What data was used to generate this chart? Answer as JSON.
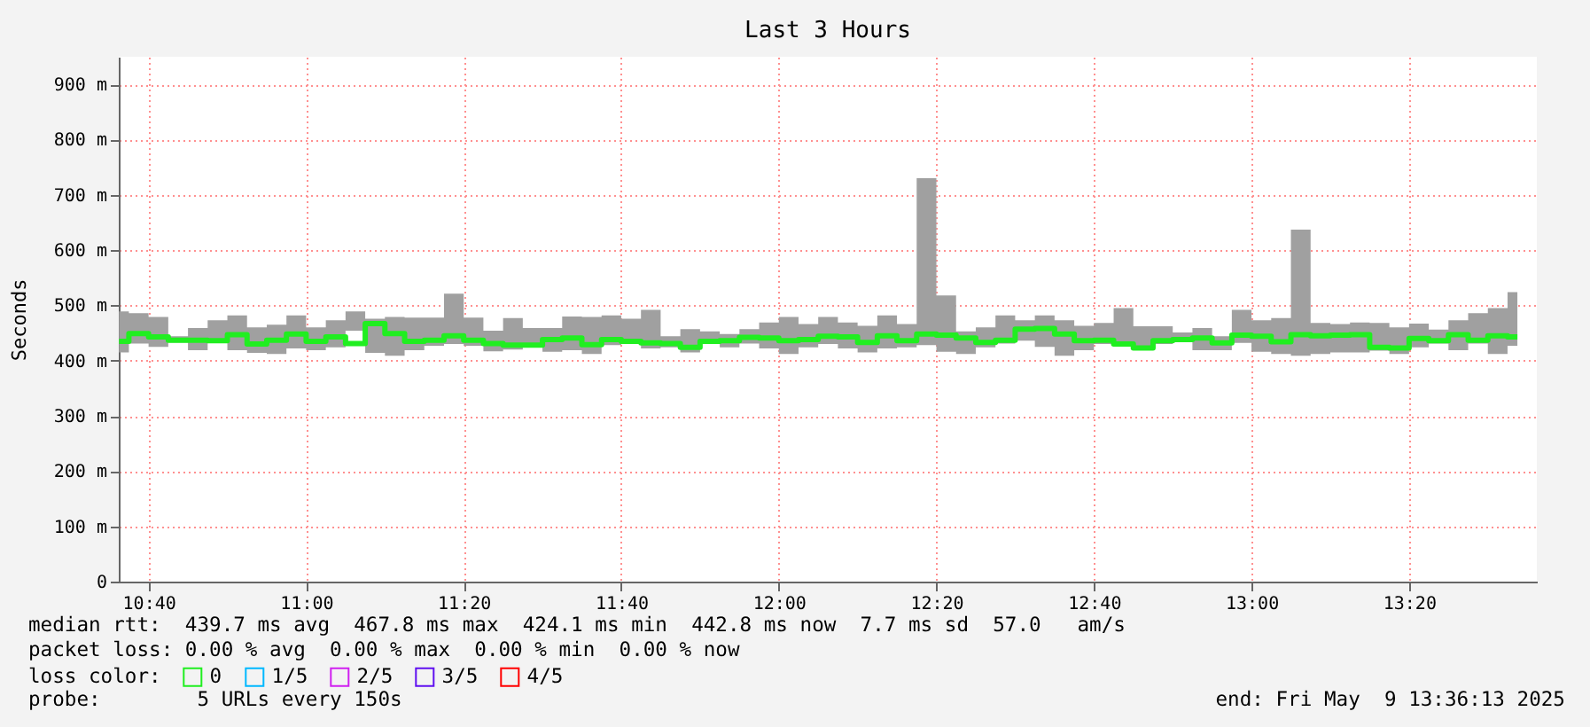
{
  "chart_data": {
    "type": "step",
    "title": "Last 3 Hours",
    "ylabel": "Seconds",
    "legend_title": "loss color:",
    "legend": "bottom left",
    "grid": true,
    "line_style": "solid",
    "marker": "none",
    "x": [
      10.6042,
      10.6458,
      10.6875,
      10.7292,
      10.7708,
      10.8125,
      10.8542,
      10.8958,
      10.9375,
      10.9792,
      11.0208,
      11.0625,
      11.1042,
      11.1458,
      11.1875,
      11.2292,
      11.2708,
      11.3125,
      11.3542,
      11.3958,
      11.4375,
      11.4792,
      11.5208,
      11.5625,
      11.6042,
      11.6458,
      11.6875,
      11.7292,
      11.7708,
      11.8125,
      11.8542,
      11.8958,
      11.9375,
      11.9792,
      12.0208,
      12.0625,
      12.1042,
      12.1458,
      12.1875,
      12.2292,
      12.2708,
      12.3125,
      12.3542,
      12.3958,
      12.4375,
      12.4792,
      12.5208,
      12.5625,
      12.6042,
      12.6458,
      12.6875,
      12.7292,
      12.7708,
      12.8125,
      12.8542,
      12.8958,
      12.9375,
      12.9792,
      13.0208,
      13.0625,
      13.1042,
      13.1458,
      13.1875,
      13.2292,
      13.2708,
      13.3125,
      13.3542,
      13.3958,
      13.4375,
      13.4792,
      13.5208,
      13.5625
    ],
    "xlim": [
      10.6036,
      13.6036
    ],
    "xticks": [
      {
        "value": 10.6667,
        "label": "10:40"
      },
      {
        "value": 11,
        "label": "11:00"
      },
      {
        "value": 11.3333,
        "label": "11:20"
      },
      {
        "value": 11.6667,
        "label": "11:40"
      },
      {
        "value": 12,
        "label": "12:00"
      },
      {
        "value": 12.3333,
        "label": "12:20"
      },
      {
        "value": 12.6667,
        "label": "12:40"
      },
      {
        "value": 13,
        "label": "13:00"
      },
      {
        "value": 13.3333,
        "label": "13:20"
      }
    ],
    "ylim": [
      0,
      950
    ],
    "yticks": [
      0,
      {
        "value": 100,
        "label": "100 m"
      },
      {
        "value": 200,
        "label": "200 m"
      },
      {
        "value": 300,
        "label": "300 m"
      },
      {
        "value": 400,
        "label": "400 m"
      },
      {
        "value": 500,
        "label": "500 m"
      },
      {
        "value": 600,
        "label": "600 m"
      },
      {
        "value": 700,
        "label": "700 m"
      },
      {
        "value": 800,
        "label": "800 m"
      },
      {
        "value": 900,
        "label": "900 m"
      }
    ],
    "series": [
      {
        "name": "0",
        "color": "#20ee20",
        "values": [
          435,
          449,
          443,
          437,
          437,
          436,
          447,
          430,
          437,
          448,
          435,
          443,
          431,
          467,
          449,
          435,
          437,
          445,
          437,
          431,
          428,
          428,
          438,
          441,
          429,
          438,
          435,
          432,
          431,
          424,
          435,
          436,
          442,
          441,
          436,
          438,
          444,
          443,
          433,
          445,
          436,
          448,
          446,
          441,
          433,
          437,
          457,
          458,
          448,
          436,
          437,
          430,
          423,
          436,
          438,
          441,
          432,
          446,
          444,
          434,
          447,
          445,
          446,
          447,
          424,
          423,
          440,
          436,
          447,
          437,
          445,
          443
        ],
        "lower": [
          415,
          431,
          425,
          433,
          419,
          433,
          419,
          414,
          412,
          422,
          419,
          424,
          454,
          414,
          409,
          419,
          427,
          430,
          427,
          417,
          420,
          428,
          416,
          419,
          412,
          428,
          431,
          422,
          424,
          415,
          430,
          424,
          431,
          422,
          412,
          424,
          430,
          422,
          415,
          422,
          424,
          428,
          416,
          412,
          424,
          431,
          436,
          425,
          409,
          419,
          430,
          427,
          419,
          430,
          435,
          419,
          419,
          432,
          416,
          412,
          409,
          412,
          415,
          415,
          418,
          412,
          424,
          431,
          419,
          431,
          412,
          427
        ],
        "upper": [
          489,
          486,
          479,
          444,
          459,
          473,
          482,
          460,
          465,
          482,
          460,
          473,
          489,
          476,
          479,
          478,
          478,
          521,
          478,
          454,
          477,
          459,
          459,
          480,
          479,
          482,
          476,
          492,
          444,
          457,
          453,
          448,
          457,
          469,
          479,
          466,
          479,
          469,
          463,
          482,
          466,
          730,
          518,
          453,
          460,
          482,
          473,
          482,
          473,
          463,
          468,
          495,
          462,
          462,
          451,
          459,
          444,
          492,
          473,
          477,
          637,
          468,
          466,
          469,
          468,
          460,
          467,
          456,
          473,
          486,
          495,
          524
        ]
      },
      {
        "name": "1/5",
        "color": "#00b8ff",
        "values": [
          null,
          null,
          null,
          null,
          null,
          null,
          null,
          null,
          null,
          null,
          null,
          null,
          null,
          null,
          null,
          null,
          null,
          null,
          null,
          null,
          null,
          null,
          null,
          null,
          null,
          null,
          null,
          null,
          null,
          null,
          null,
          null,
          null,
          null,
          null,
          null,
          null,
          null,
          null,
          null,
          null,
          null,
          null,
          null,
          null,
          null,
          null,
          null,
          null,
          null,
          null,
          null,
          null,
          null,
          null,
          null,
          null,
          null,
          null,
          null,
          null,
          null,
          null,
          null,
          null,
          null,
          null,
          null,
          null,
          null,
          null,
          null
        ]
      },
      {
        "name": "2/5",
        "color": "#d020f0",
        "values": [
          null,
          null,
          null,
          null,
          null,
          null,
          null,
          null,
          null,
          null,
          null,
          null,
          null,
          null,
          null,
          null,
          null,
          null,
          null,
          null,
          null,
          null,
          null,
          null,
          null,
          null,
          null,
          null,
          null,
          null,
          null,
          null,
          null,
          null,
          null,
          null,
          null,
          null,
          null,
          null,
          null,
          null,
          null,
          null,
          null,
          null,
          null,
          null,
          null,
          null,
          null,
          null,
          null,
          null,
          null,
          null,
          null,
          null,
          null,
          null,
          null,
          null,
          null,
          null,
          null,
          null,
          null,
          null,
          null,
          null,
          null,
          null
        ]
      },
      {
        "name": "3/5",
        "color": "#6010f0",
        "values": [
          null,
          null,
          null,
          null,
          null,
          null,
          null,
          null,
          null,
          null,
          null,
          null,
          null,
          null,
          null,
          null,
          null,
          null,
          null,
          null,
          null,
          null,
          null,
          null,
          null,
          null,
          null,
          null,
          null,
          null,
          null,
          null,
          null,
          null,
          null,
          null,
          null,
          null,
          null,
          null,
          null,
          null,
          null,
          null,
          null,
          null,
          null,
          null,
          null,
          null,
          null,
          null,
          null,
          null,
          null,
          null,
          null,
          null,
          null,
          null,
          null,
          null,
          null,
          null,
          null,
          null,
          null,
          null,
          null,
          null,
          null,
          null
        ]
      },
      {
        "name": "4/5",
        "color": "#ff0000",
        "values": [
          null,
          null,
          null,
          null,
          null,
          null,
          null,
          null,
          null,
          null,
          null,
          null,
          null,
          null,
          null,
          null,
          null,
          null,
          null,
          null,
          null,
          null,
          null,
          null,
          null,
          null,
          null,
          null,
          null,
          null,
          null,
          null,
          null,
          null,
          null,
          null,
          null,
          null,
          null,
          null,
          null,
          null,
          null,
          null,
          null,
          null,
          null,
          null,
          null,
          null,
          null,
          null,
          null,
          null,
          null,
          null,
          null,
          null,
          null,
          null,
          null,
          null,
          null,
          null,
          null,
          null,
          null,
          null,
          null,
          null,
          null,
          null
        ]
      }
    ],
    "annotations": [
      "median rtt:  439.7 ms avg  467.8 ms max  424.1 ms min  442.8 ms now  7.7 ms sd  57.0   am/s",
      "packet loss: 0.00 % avg  0.00 % max  0.00 % min  0.00 % now",
      "probe:        5 URLs every 150s",
      "end: Fri May  9 13:36:13 2025"
    ]
  }
}
